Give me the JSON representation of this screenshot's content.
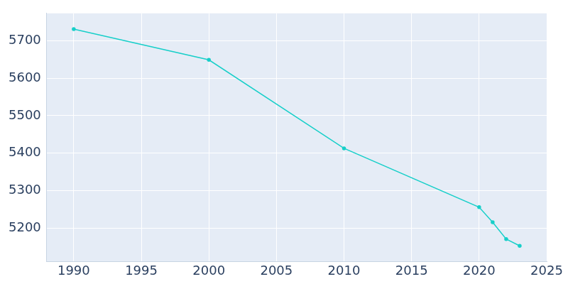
{
  "chart_data": {
    "type": "line",
    "x": [
      1990,
      2000,
      2010,
      2020,
      2021,
      2022,
      2023
    ],
    "values": [
      5731,
      5649,
      5413,
      5256,
      5216,
      5171,
      5153
    ],
    "color": "#17cfc9",
    "marker": "circle",
    "xlim": [
      1988,
      2025
    ],
    "xticks": [
      1990,
      1995,
      2000,
      2005,
      2010,
      2015,
      2020,
      2025
    ],
    "ylim": [
      5111,
      5773
    ],
    "yticks": [
      5200,
      5300,
      5400,
      5500,
      5600,
      5700
    ],
    "grid": true
  }
}
